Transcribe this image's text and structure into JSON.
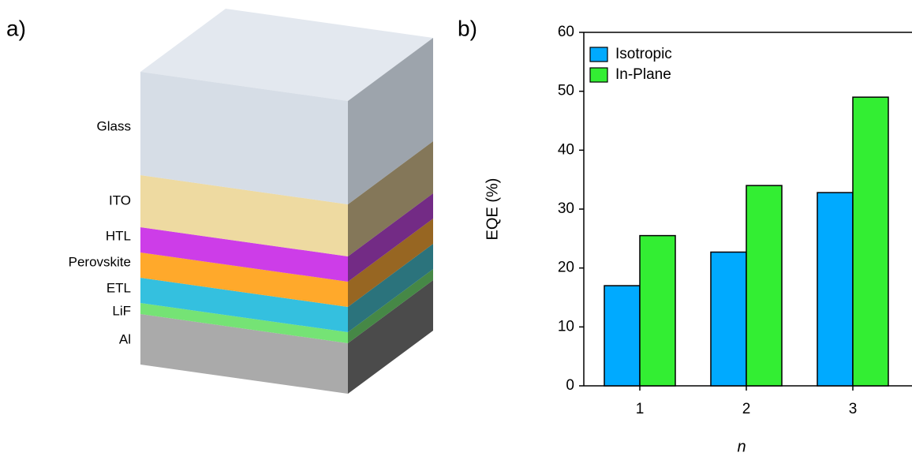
{
  "panels": {
    "a": {
      "label": "a)",
      "layers": [
        "Glass",
        "ITO",
        "HTL",
        "Perovskite",
        "ETL",
        "LiF",
        "Al"
      ]
    }
  },
  "chart_data": {
    "type": "bar",
    "panel_label": "b)",
    "categories": [
      "1",
      "2",
      "3"
    ],
    "series": [
      {
        "name": "Isotropic",
        "color": "#00aaff",
        "values": [
          17,
          22.7,
          32.8
        ]
      },
      {
        "name": "In-Plane",
        "color": "#33ee33",
        "values": [
          25.5,
          34,
          49
        ]
      }
    ],
    "xlabel": "n",
    "ylabel": "EQE (%)",
    "ylim": [
      0,
      60
    ],
    "yticks": [
      0,
      10,
      20,
      30,
      40,
      50,
      60
    ],
    "legend": "upper-left",
    "grid": false
  }
}
